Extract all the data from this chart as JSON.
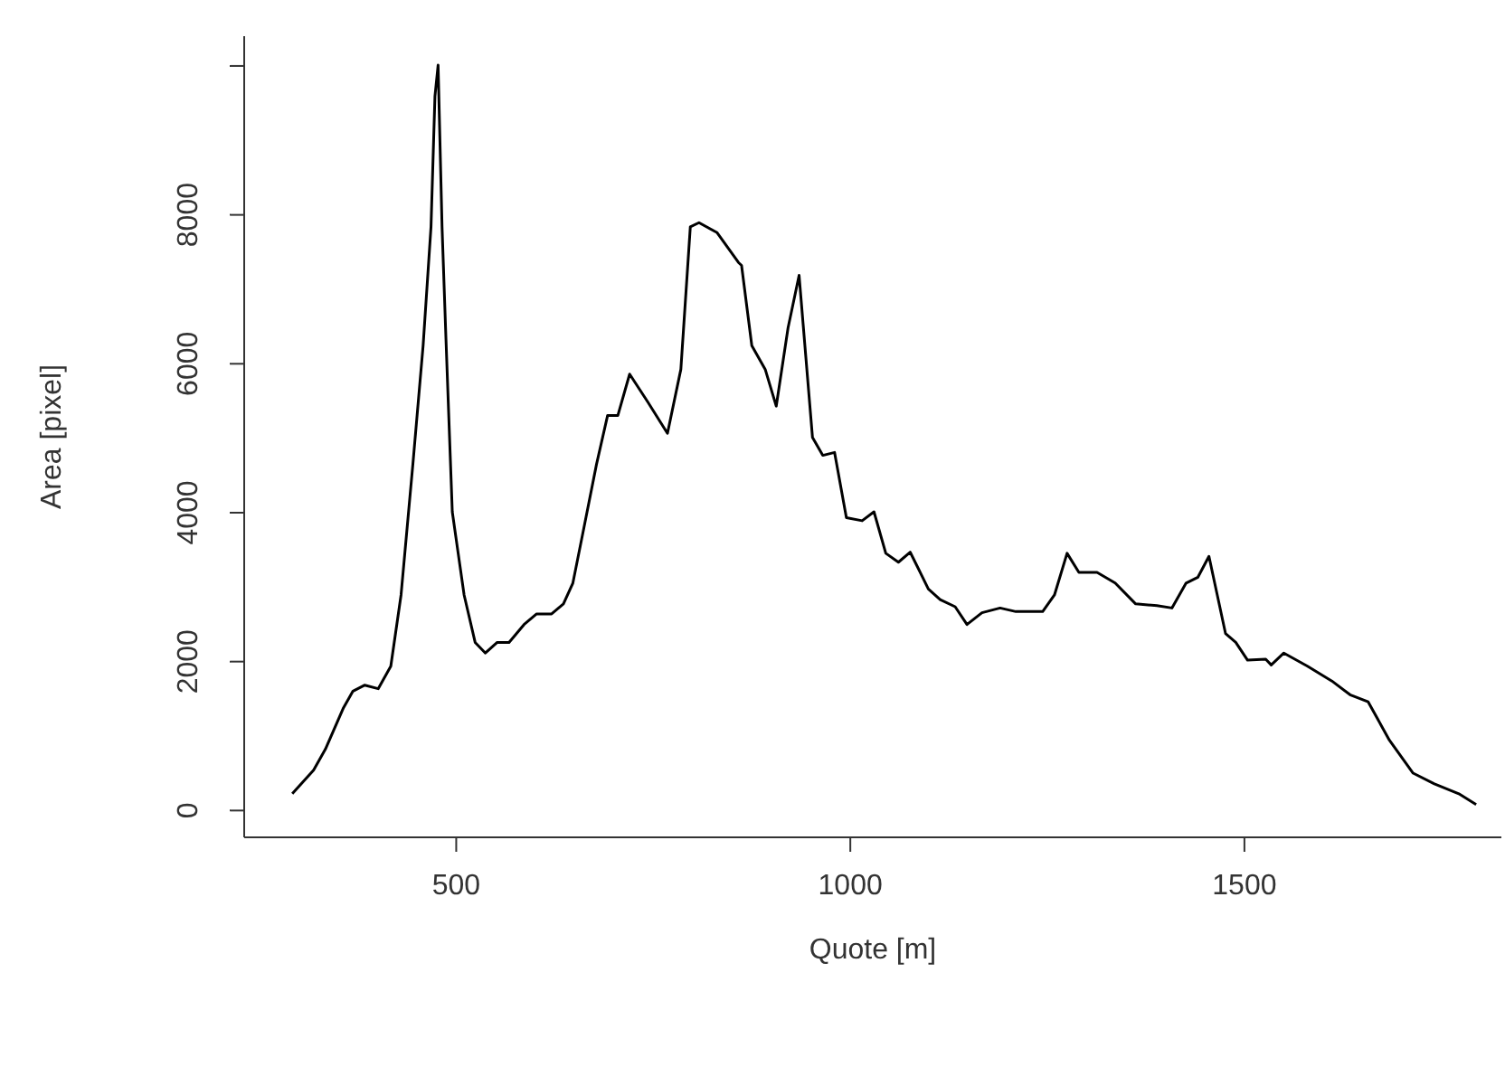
{
  "chart_data": {
    "type": "line",
    "xlabel": "Quote [m]",
    "ylabel": "Area [pixel]",
    "x": [
      292,
      319,
      334,
      357,
      369,
      384,
      401,
      417,
      430,
      445,
      458,
      468,
      473,
      477,
      482,
      487,
      495,
      510,
      524,
      537,
      552,
      567,
      586,
      602,
      621,
      636,
      648,
      663,
      678,
      692,
      705,
      720,
      743,
      768,
      785,
      797,
      808,
      831,
      858,
      862,
      875,
      892,
      906,
      921,
      935,
      952,
      965,
      980,
      995,
      1015,
      1030,
      1045,
      1061,
      1076,
      1099,
      1114,
      1133,
      1148,
      1167,
      1190,
      1210,
      1244,
      1259,
      1275,
      1290,
      1313,
      1336,
      1362,
      1389,
      1408,
      1426,
      1441,
      1455,
      1476,
      1489,
      1504,
      1527,
      1534,
      1550,
      1580,
      1611,
      1634,
      1657,
      1684,
      1714,
      1741,
      1772,
      1794
    ],
    "series": [
      {
        "color": "#000000",
        "values": [
          225,
          543,
          823,
          1380,
          1603,
          1684,
          1636,
          1938,
          2895,
          4651,
          6244,
          7840,
          9593,
          10010,
          7840,
          6325,
          4012,
          2895,
          2258,
          2115,
          2258,
          2258,
          2498,
          2641,
          2641,
          2775,
          3055,
          3852,
          4651,
          5304,
          5304,
          5861,
          5488,
          5065,
          5926,
          7840,
          7895,
          7761,
          7361,
          7321,
          6244,
          5926,
          5431,
          6483,
          7187,
          5010,
          4770,
          4809,
          3933,
          3892,
          4012,
          3455,
          3335,
          3469,
          2976,
          2833,
          2737,
          2498,
          2656,
          2720,
          2672,
          2672,
          2895,
          3455,
          3199,
          3199,
          3055,
          2775,
          2751,
          2720,
          3055,
          3134,
          3414,
          2378,
          2258,
          2019,
          2033,
          1955,
          2115,
          1938,
          1739,
          1555,
          1459,
          943,
          502,
          359,
          225,
          81
        ]
      }
    ],
    "xlim": [
      231,
      1826
    ],
    "xticks": [
      500,
      1000,
      1500
    ],
    "ylim": [
      -360,
      10400
    ],
    "yticks": [
      0,
      2000,
      4000,
      6000,
      8000,
      {
        "value": 10000,
        "label": null
      }
    ],
    "grid": false,
    "legend": false,
    "marker": "none",
    "line_style": "solid"
  }
}
